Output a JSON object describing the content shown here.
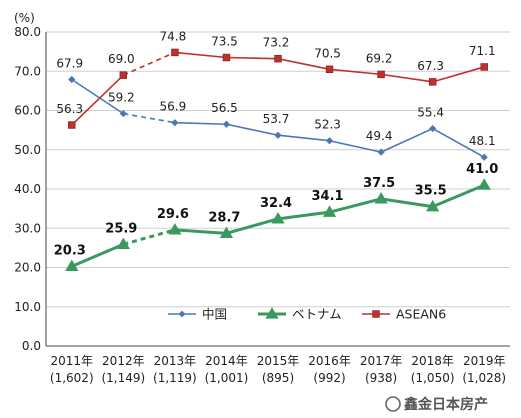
{
  "chart_data": {
    "type": "line",
    "unit_label": "(%)",
    "categories": [
      "2011年",
      "2012年",
      "2013年",
      "2014年",
      "2015年",
      "2016年",
      "2017年",
      "2018年",
      "2019年"
    ],
    "category_sublabels": [
      "(1,602)",
      "(1,149)",
      "(1,119)",
      "(1,001)",
      "(895)",
      "(992)",
      "(938)",
      "(1,050)",
      "(1,028)"
    ],
    "ylim": [
      0,
      80
    ],
    "yticks": [
      "0.0",
      "10.0",
      "20.0",
      "30.0",
      "40.0",
      "50.0",
      "60.0",
      "70.0",
      "80.0"
    ],
    "grid": true,
    "legend_position": "bottom-right",
    "series": [
      {
        "name": "中国",
        "color": "#4a78b5",
        "marker": "diamond",
        "values": [
          67.9,
          59.2,
          56.9,
          56.5,
          53.7,
          52.3,
          49.4,
          55.4,
          48.1
        ],
        "labels": [
          "67.9",
          "59.2",
          "56.9",
          "56.5",
          "53.7",
          "52.3",
          "49.4",
          "55.4",
          "48.1"
        ]
      },
      {
        "name": "ベトナム",
        "color": "#3a9a5e",
        "marker": "triangle",
        "values": [
          20.3,
          25.9,
          29.6,
          28.7,
          32.4,
          34.1,
          37.5,
          35.5,
          41.0
        ],
        "labels": [
          "20.3",
          "25.9",
          "29.6",
          "28.7",
          "32.4",
          "34.1",
          "37.5",
          "35.5",
          "41.0"
        ]
      },
      {
        "name": "ASEAN6",
        "color": "#c0302f",
        "marker": "square",
        "values": [
          56.3,
          69.0,
          74.8,
          73.5,
          73.2,
          70.5,
          69.2,
          67.3,
          71.1
        ],
        "labels": [
          "56.3",
          "69.0",
          "74.8",
          "73.5",
          "73.2",
          "70.5",
          "69.2",
          "67.3",
          "71.1"
        ]
      }
    ],
    "dashed_segment": [
      1,
      2
    ]
  },
  "watermark": "鑫金日本房产"
}
